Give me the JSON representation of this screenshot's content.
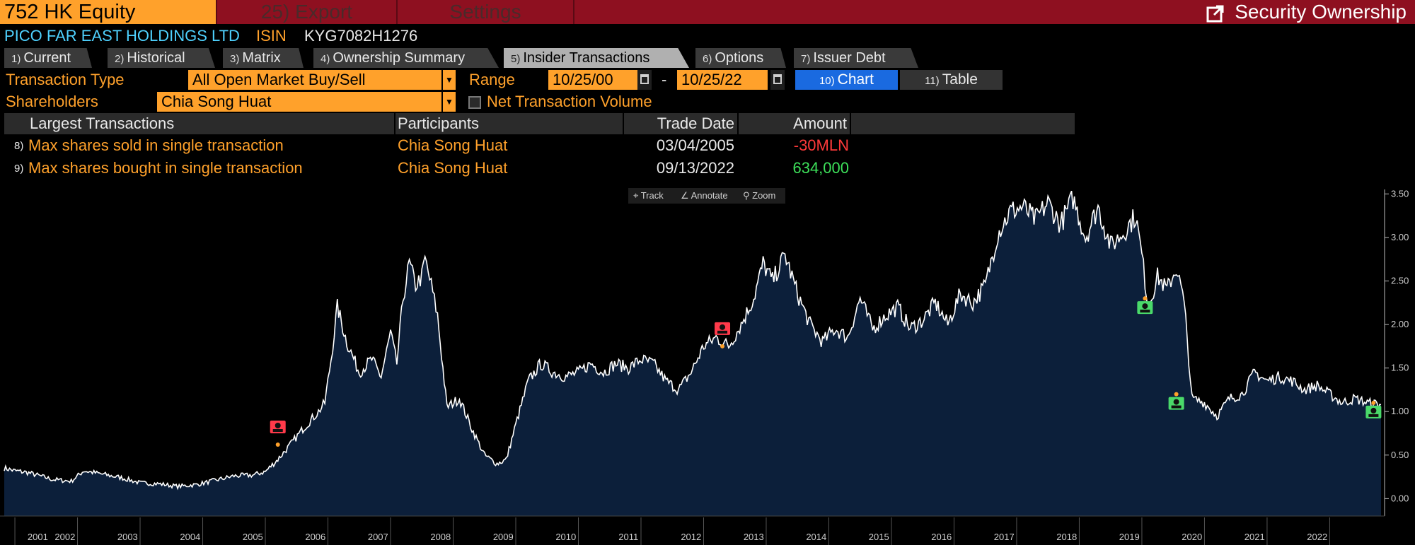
{
  "header": {
    "ticker": "752 HK Equity",
    "export_label": "25) Export",
    "settings_label": "Settings",
    "title": "Security Ownership",
    "brand_color": "#8e1020",
    "accent_color": "#ffa12b"
  },
  "security": {
    "company": "PICO FAR EAST HOLDINGS LTD",
    "isin_label": "ISIN",
    "isin": "KYG7082H1276"
  },
  "tabs": [
    {
      "num": "1)",
      "label": "Current"
    },
    {
      "num": "2)",
      "label": "Historical"
    },
    {
      "num": "3)",
      "label": "Matrix"
    },
    {
      "num": "4)",
      "label": "Ownership Summary"
    },
    {
      "num": "5)",
      "label": "Insider Transactions",
      "active": true
    },
    {
      "num": "6)",
      "label": "Options"
    },
    {
      "num": "7)",
      "label": "Issuer Debt"
    }
  ],
  "filters": {
    "transaction_type_label": "Transaction Type",
    "transaction_type": "All Open Market Buy/Sell",
    "range_label": "Range",
    "range_from": "10/25/00",
    "range_sep": "-",
    "range_to": "10/25/22",
    "chart_num": "10)",
    "chart_label": "Chart",
    "table_num": "11)",
    "table_label": "Table",
    "shareholders_label": "Shareholders",
    "shareholder": "Chia Song Huat",
    "net_volume_label": "Net Transaction Volume"
  },
  "largest_transactions": {
    "columns": [
      "Largest Transactions",
      "Participants",
      "Trade Date",
      "Amount"
    ],
    "rows": [
      {
        "num": "8)",
        "label": "Max shares sold in single transaction",
        "participant": "Chia Song Huat",
        "date": "03/04/2005",
        "amount": "-30MLN",
        "amount_color": "#ff3a3a"
      },
      {
        "num": "9)",
        "label": "Max shares bought in single transaction",
        "participant": "Chia Song Huat",
        "date": "09/13/2022",
        "amount": "634,000",
        "amount_color": "#3de05a"
      }
    ]
  },
  "chart_toolbar": {
    "track": "Track",
    "annotate": "Annotate",
    "zoom": "Zoom"
  },
  "chart_data": {
    "type": "line",
    "title": "",
    "xlabel": "",
    "ylabel": "",
    "fill": "area",
    "line_color": "#ffffff",
    "fill_color": "#0c1f3a",
    "xlim": [
      2000.83,
      2022.82
    ],
    "ylim": [
      -0.2,
      3.6
    ],
    "x_tick_labels": [
      "2001",
      "2002",
      "2003",
      "2004",
      "2005",
      "2006",
      "2007",
      "2008",
      "2009",
      "2010",
      "2011",
      "2012",
      "2013",
      "2014",
      "2015",
      "2016",
      "2017",
      "2018",
      "2019",
      "2020",
      "2021",
      "2022"
    ],
    "y_ticks": [
      "0.00",
      "0.50",
      "1.00",
      "1.50",
      "2.00",
      "2.50",
      "3.00",
      "3.50"
    ],
    "y_tick_values": [
      0,
      0.5,
      1,
      1.5,
      2,
      2.5,
      3,
      3.5
    ],
    "series": [
      {
        "name": "752 HK Equity price",
        "x": [
          2000.83,
          2001.0,
          2001.2,
          2001.4,
          2001.6,
          2001.9,
          2002.1,
          2002.4,
          2002.7,
          2003.0,
          2003.3,
          2003.6,
          2003.9,
          2004.2,
          2004.5,
          2004.8,
          2005.0,
          2005.2,
          2005.4,
          2005.6,
          2005.75,
          2005.85,
          2005.95,
          2006.05,
          2006.15,
          2006.3,
          2006.5,
          2006.7,
          2006.85,
          2007.0,
          2007.1,
          2007.2,
          2007.3,
          2007.4,
          2007.5,
          2007.55,
          2007.65,
          2007.75,
          2007.9,
          2008.1,
          2008.3,
          2008.5,
          2008.7,
          2008.85,
          2009.0,
          2009.2,
          2009.4,
          2009.6,
          2009.8,
          2010.0,
          2010.2,
          2010.4,
          2010.6,
          2010.8,
          2011.0,
          2011.2,
          2011.4,
          2011.6,
          2011.8,
          2012.0,
          2012.2,
          2012.4,
          2012.6,
          2012.8,
          2012.95,
          2013.1,
          2013.3,
          2013.5,
          2013.7,
          2013.9,
          2014.1,
          2014.3,
          2014.5,
          2014.7,
          2014.9,
          2015.1,
          2015.3,
          2015.5,
          2015.7,
          2015.9,
          2016.1,
          2016.3,
          2016.5,
          2016.7,
          2016.9,
          2017.1,
          2017.3,
          2017.5,
          2017.7,
          2017.9,
          2018.1,
          2018.3,
          2018.5,
          2018.7,
          2018.9,
          2019.0,
          2019.1,
          2019.25,
          2019.4,
          2019.55,
          2019.65,
          2019.7,
          2019.8,
          2020.0,
          2020.2,
          2020.4,
          2020.6,
          2020.8,
          2021.0,
          2021.2,
          2021.4,
          2021.6,
          2021.8,
          2022.0,
          2022.2,
          2022.4,
          2022.6,
          2022.82
        ],
        "y": [
          0.35,
          0.32,
          0.3,
          0.26,
          0.22,
          0.2,
          0.32,
          0.28,
          0.24,
          0.18,
          0.17,
          0.14,
          0.16,
          0.21,
          0.26,
          0.27,
          0.31,
          0.45,
          0.62,
          0.8,
          0.92,
          1.0,
          1.1,
          1.6,
          2.2,
          1.8,
          1.45,
          1.6,
          1.4,
          1.9,
          1.55,
          2.3,
          2.7,
          2.45,
          2.55,
          2.75,
          2.45,
          2.1,
          1.05,
          1.15,
          0.8,
          0.5,
          0.4,
          0.45,
          0.85,
          1.35,
          1.55,
          1.45,
          1.4,
          1.45,
          1.55,
          1.45,
          1.55,
          1.5,
          1.6,
          1.55,
          1.35,
          1.25,
          1.45,
          1.75,
          1.85,
          1.75,
          2.0,
          2.3,
          2.7,
          2.5,
          2.8,
          2.35,
          2.0,
          1.8,
          1.95,
          1.85,
          2.3,
          1.95,
          2.1,
          2.2,
          1.95,
          2.05,
          2.25,
          2.0,
          2.35,
          2.25,
          2.45,
          3.05,
          3.3,
          3.35,
          3.2,
          3.4,
          3.15,
          3.45,
          3.0,
          3.35,
          2.9,
          3.05,
          3.25,
          2.8,
          2.2,
          2.55,
          2.4,
          2.65,
          2.35,
          2.05,
          1.15,
          1.1,
          0.95,
          1.15,
          1.2,
          1.45,
          1.35,
          1.4,
          1.35,
          1.25,
          1.3,
          1.2,
          1.1,
          1.15,
          1.1,
          1.08
        ]
      }
    ],
    "markers": [
      {
        "x": 2005.2,
        "y": 0.62,
        "kind": "sell"
      },
      {
        "x": 2012.3,
        "y": 1.75,
        "kind": "sell"
      },
      {
        "x": 2019.05,
        "y": 2.3,
        "kind": "buy"
      },
      {
        "x": 2019.55,
        "y": 1.2,
        "kind": "buy"
      },
      {
        "x": 2022.7,
        "y": 1.1,
        "kind": "buy"
      }
    ],
    "sell_color": "#ff3a4a",
    "buy_color": "#4ad96a"
  }
}
